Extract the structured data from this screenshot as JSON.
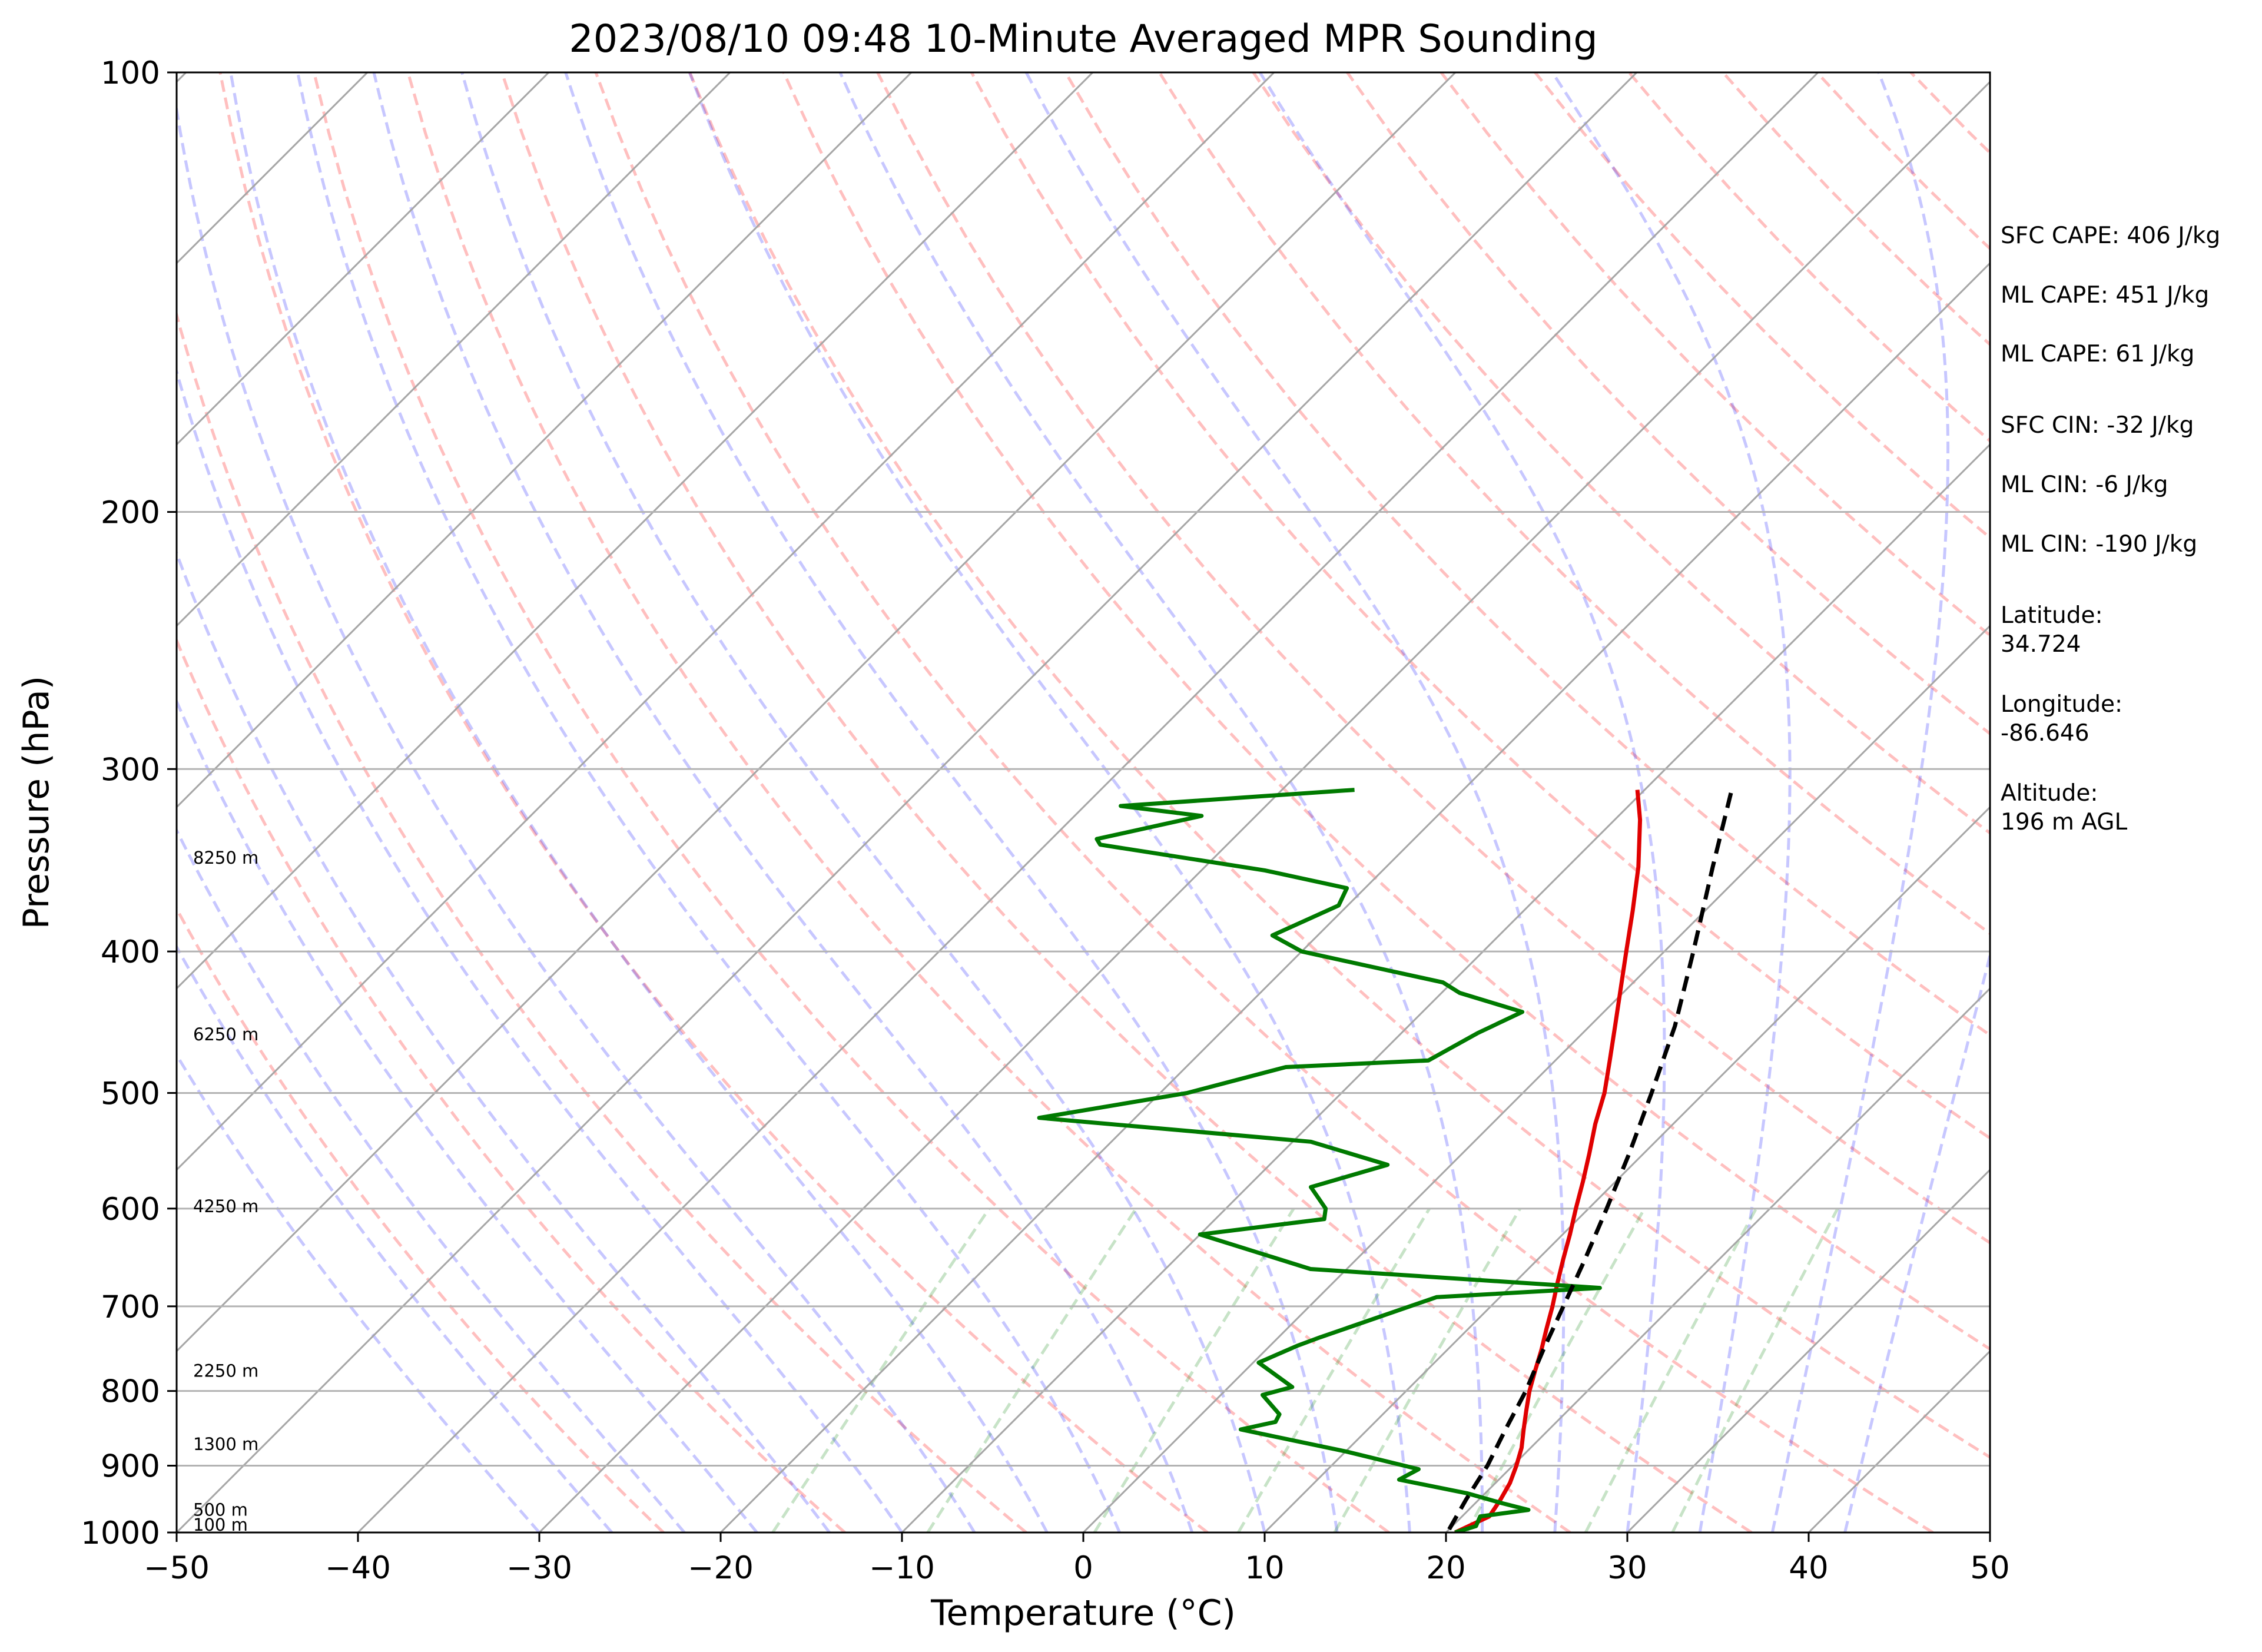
{
  "chart_data": {
    "type": "line",
    "title": "2023/08/10 09:48 10-Minute Averaged MPR Sounding",
    "xlabel": "Temperature (°C)",
    "ylabel": "Pressure (hPa)",
    "x_scale": "skew-T",
    "y_scale": "log (inverted)",
    "xlim": [
      -50,
      50
    ],
    "ylim": [
      1000,
      100
    ],
    "grid": true,
    "x_ticks": [
      "−50",
      "−40",
      "−30",
      "−20",
      "−10",
      "0",
      "10",
      "20",
      "30",
      "40",
      "50"
    ],
    "y_ticks": [
      "100",
      "200",
      "300",
      "400",
      "500",
      "600",
      "700",
      "800",
      "900",
      "1000"
    ],
    "height_labels": [
      "100 m",
      "500 m",
      "1300 m",
      "2250 m",
      "4250 m",
      "6250 m",
      "8250 m"
    ],
    "series": [
      {
        "color": "#e00000",
        "points": [
          [
            20.5,
            1000
          ],
          [
            21.5,
            975
          ],
          [
            21.2,
            950
          ],
          [
            20.8,
            925
          ],
          [
            20.2,
            900
          ],
          [
            19.5,
            875
          ],
          [
            18.6,
            850
          ],
          [
            17.7,
            825
          ],
          [
            16.8,
            800
          ],
          [
            16.0,
            775
          ],
          [
            15.2,
            750
          ],
          [
            14.3,
            725
          ],
          [
            13.4,
            700
          ],
          [
            12.4,
            675
          ],
          [
            11.4,
            650
          ],
          [
            10.4,
            625
          ],
          [
            9.3,
            600
          ],
          [
            8.2,
            575
          ],
          [
            7.0,
            550
          ],
          [
            5.7,
            525
          ],
          [
            4.5,
            500
          ],
          [
            3.0,
            475
          ],
          [
            1.4,
            450
          ],
          [
            -0.3,
            425
          ],
          [
            -2.1,
            400
          ],
          [
            -4.0,
            375
          ],
          [
            -6.1,
            350
          ],
          [
            -8.6,
            325
          ],
          [
            -10.4,
            310
          ]
        ]
      },
      {
        "color": "#007a00",
        "points": [
          [
            20.5,
            1000
          ],
          [
            21.3,
            990
          ],
          [
            21.0,
            975
          ],
          [
            23.3,
            965
          ],
          [
            21.5,
            955
          ],
          [
            19.0,
            940
          ],
          [
            14.5,
            920
          ],
          [
            15.0,
            905
          ],
          [
            10.0,
            880
          ],
          [
            3.0,
            850
          ],
          [
            4.5,
            840
          ],
          [
            4.3,
            830
          ],
          [
            2.3,
            805
          ],
          [
            3.5,
            795
          ],
          [
            0.3,
            765
          ],
          [
            1.5,
            745
          ],
          [
            2.3,
            735
          ],
          [
            6.5,
            690
          ],
          [
            15.0,
            680
          ],
          [
            -2.0,
            660
          ],
          [
            -10.0,
            625
          ],
          [
            -4.0,
            610
          ],
          [
            -4.5,
            600
          ],
          [
            -6.5,
            580
          ],
          [
            -3.5,
            560
          ],
          [
            -9.0,
            540
          ],
          [
            -25.3,
            520
          ],
          [
            -18.5,
            500
          ],
          [
            -14.5,
            480
          ],
          [
            -7.0,
            475
          ],
          [
            -5.8,
            455
          ],
          [
            -4.5,
            440
          ],
          [
            -9.0,
            427
          ],
          [
            -10.5,
            420
          ],
          [
            -20.0,
            400
          ],
          [
            -22.5,
            390
          ],
          [
            -20.5,
            372
          ],
          [
            -21.0,
            362
          ],
          [
            -26.5,
            352
          ],
          [
            -37.0,
            338
          ],
          [
            -37.5,
            335
          ],
          [
            -33.0,
            323
          ],
          [
            -38.0,
            318
          ],
          [
            -26.0,
            310
          ]
        ]
      },
      {
        "color": "#000000",
        "style": "dashed",
        "points": [
          [
            20.0,
            995
          ],
          [
            19.3,
            950
          ],
          [
            18.6,
            900
          ],
          [
            17.6,
            850
          ],
          [
            16.6,
            800
          ],
          [
            15.3,
            750
          ],
          [
            14.0,
            700
          ],
          [
            12.6,
            650
          ],
          [
            11.0,
            600
          ],
          [
            9.2,
            550
          ],
          [
            7.1,
            500
          ],
          [
            4.7,
            450
          ],
          [
            1.6,
            400
          ],
          [
            -2.0,
            350
          ],
          [
            -5.2,
            310
          ]
        ]
      }
    ]
  },
  "info": {
    "sfc_cape": "SFC CAPE: 406 J/kg",
    "ml_cape_1": "ML CAPE: 451 J/kg",
    "ml_cape_2": "ML CAPE: 61 J/kg",
    "sfc_cin": "SFC CIN: -32 J/kg",
    "ml_cin_1": "ML CIN: -6 J/kg",
    "ml_cin_2": "ML CIN: -190 J/kg",
    "latitude_label": "Latitude:",
    "latitude_value": "34.724",
    "longitude_label": "Longitude:",
    "longitude_value": "-86.646",
    "altitude_label": "Altitude:",
    "altitude_value": "196 m AGL"
  }
}
